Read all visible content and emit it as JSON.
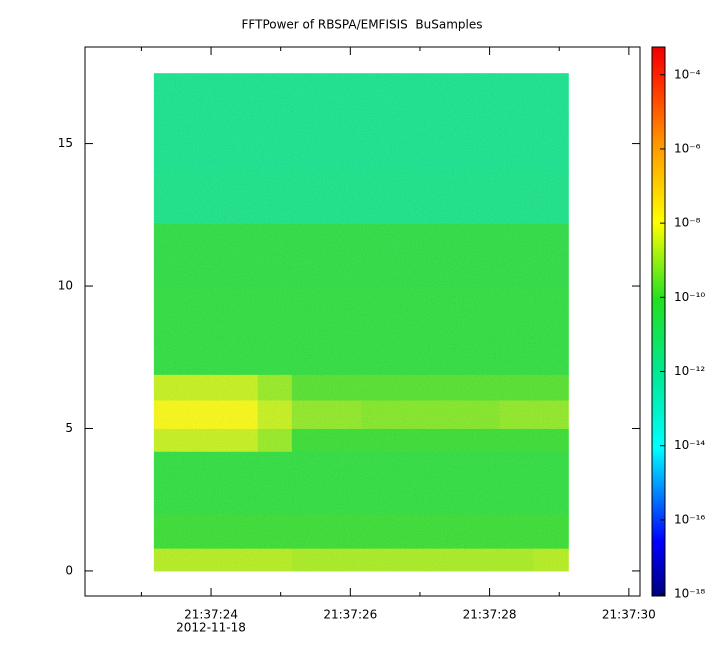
{
  "chart_data": {
    "type": "spectrogram",
    "title": "FFTPower of RBSPA/EMFISIS  BuSamples",
    "x_sublabel": "2012-11-18",
    "x_edges": [
      "2012-11-18T21:37:23.18",
      "2012-11-18T21:37:23.68",
      "2012-11-18T21:37:24.17",
      "2012-11-18T21:37:24.67",
      "2012-11-18T21:37:25.16",
      "2012-11-18T21:37:25.66",
      "2012-11-18T21:37:26.16",
      "2012-11-18T21:37:26.65",
      "2012-11-18T21:37:27.15",
      "2012-11-18T21:37:27.64",
      "2012-11-18T21:37:28.14",
      "2012-11-18T21:37:28.63",
      "2012-11-18T21:37:29.13"
    ],
    "y_edges": [
      0,
      0.8,
      2,
      4.2,
      5,
      6,
      6.9,
      8,
      10,
      12.2,
      14,
      16,
      17.47
    ],
    "z": [
      [
        2e-09,
        2e-09,
        2e-09,
        2e-09,
        1.5e-09,
        1.5e-09,
        1.5e-09,
        1.5e-09,
        1.5e-09,
        1.5e-09,
        1.5e-09,
        2e-09
      ],
      [
        1e-10,
        1e-10,
        1e-10,
        1e-10,
        1e-10,
        1e-10,
        1e-10,
        1e-10,
        1e-10,
        1e-10,
        1e-10,
        1e-10
      ],
      [
        5e-11,
        5e-11,
        5e-11,
        5e-11,
        5e-11,
        5e-11,
        5e-11,
        5e-11,
        5e-11,
        5e-11,
        5e-11,
        5e-11
      ],
      [
        3e-09,
        3e-09,
        3e-09,
        1e-09,
        1e-10,
        1e-10,
        1e-10,
        1e-10,
        1e-10,
        1e-10,
        1e-10,
        1e-10
      ],
      [
        1e-08,
        1e-08,
        1e-08,
        3e-09,
        8e-10,
        8e-10,
        6e-10,
        6e-10,
        6e-10,
        6e-10,
        8e-10,
        8e-10
      ],
      [
        3e-09,
        3e-09,
        3e-09,
        1e-09,
        2e-10,
        2e-10,
        2e-10,
        2e-10,
        2e-10,
        2e-10,
        2e-10,
        2e-10
      ],
      [
        5e-11,
        5e-11,
        5e-11,
        5e-11,
        5e-11,
        5e-11,
        5e-11,
        5e-11,
        5e-11,
        5e-11,
        5e-11,
        5e-11
      ],
      [
        5e-11,
        5e-11,
        5e-11,
        5e-11,
        5e-11,
        5e-11,
        5e-11,
        5e-11,
        5e-11,
        5e-11,
        5e-11,
        5e-11
      ],
      [
        4e-11,
        4e-11,
        4e-11,
        4e-11,
        4e-11,
        4e-11,
        4e-11,
        4e-11,
        4e-11,
        4e-11,
        4e-11,
        4e-11
      ],
      [
        2e-12,
        2e-12,
        2e-12,
        2e-12,
        2e-12,
        2e-12,
        2e-12,
        2e-12,
        2e-12,
        2e-12,
        2e-12,
        2e-12
      ],
      [
        1.5e-12,
        1.5e-12,
        1.5e-12,
        1.5e-12,
        1.5e-12,
        1.5e-12,
        1.5e-12,
        1.5e-12,
        1.5e-12,
        1.5e-12,
        1.5e-12,
        1.5e-12
      ],
      [
        1.5e-12,
        1.5e-12,
        1.5e-12,
        1.5e-12,
        1.5e-12,
        1.5e-12,
        1.5e-12,
        1.5e-12,
        1.5e-12,
        1.5e-12,
        1.5e-12,
        1.5e-12
      ]
    ],
    "xlim": [
      "2012-11-18T21:37:22.19",
      "2012-11-18T21:37:30.16"
    ],
    "xticks": [
      {
        "value": "2012-11-18T21:37:24",
        "label": "21:37:24"
      },
      {
        "value": "2012-11-18T21:37:26",
        "label": "21:37:26"
      },
      {
        "value": "2012-11-18T21:37:28",
        "label": "21:37:28"
      },
      {
        "value": "2012-11-18T21:37:30",
        "label": "21:37:30"
      }
    ],
    "xminorticks": [
      "2012-11-18T21:37:23",
      "2012-11-18T21:37:25",
      "2012-11-18T21:37:27",
      "2012-11-18T21:37:29"
    ],
    "ylim": [
      -0.88,
      18.39
    ],
    "yticks": [
      0,
      5,
      10,
      15
    ],
    "zlim": [
      8.9e-19,
      0.00056
    ],
    "zlog": true,
    "zticks": [
      {
        "value": 0.0001,
        "label": "10⁻⁴"
      },
      {
        "value": 1e-06,
        "label": "10⁻⁶"
      },
      {
        "value": 1e-08,
        "label": "10⁻⁸"
      },
      {
        "value": 1e-10,
        "label": "10⁻¹⁰"
      },
      {
        "value": 1e-12,
        "label": "10⁻¹²"
      },
      {
        "value": 1e-14,
        "label": "10⁻¹⁴"
      },
      {
        "value": 1e-16,
        "label": "10⁻¹⁶"
      },
      {
        "value": 1e-18,
        "label": "10⁻¹⁸"
      }
    ]
  }
}
